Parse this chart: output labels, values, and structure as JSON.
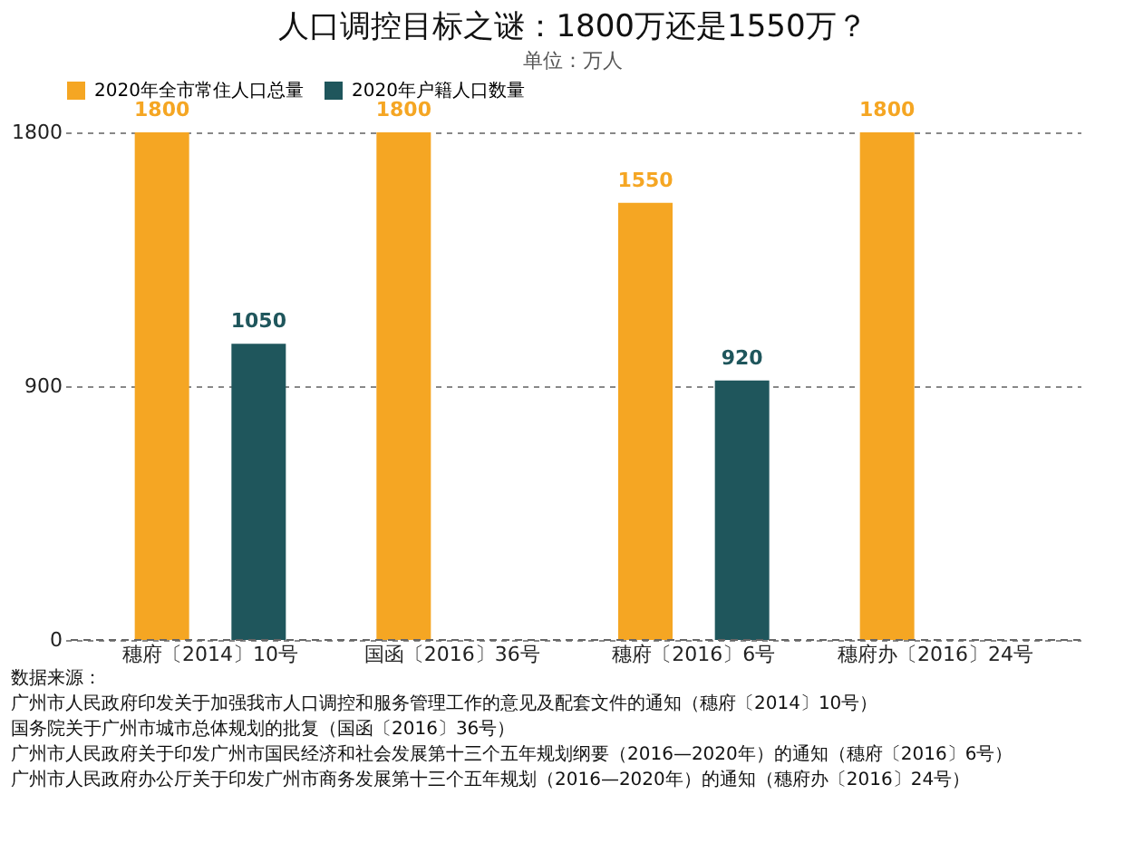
{
  "chart_data": {
    "type": "bar",
    "title": "人口调控目标之谜：1800万还是1550万？",
    "subtitle": "单位：万人",
    "categories": [
      "穗府〔2014〕10号",
      "国函〔2016〕36号",
      "穗府〔2016〕6号",
      "穗府办〔2016〕24号"
    ],
    "series": [
      {
        "name": "2020年全市常住人口总量",
        "color": "#f5a623",
        "values": [
          1800,
          1800,
          1550,
          1800
        ]
      },
      {
        "name": "2020年户籍人口数量",
        "color": "#1f565c",
        "values": [
          1050,
          null,
          920,
          null
        ]
      }
    ],
    "ylim": [
      0,
      1800
    ],
    "yticks": [
      0,
      900,
      1800
    ],
    "grid": "y",
    "legend": "top",
    "data_labels": true,
    "annotations": [
      "数据来源：",
      "广州市人民政府印发关于加强我市人口调控和服务管理工作的意见及配套文件的通知（穗府〔2014〕10号）",
      "国务院关于广州市城市总体规划的批复（国函〔2016〕36号）",
      "广州市人民政府关于印发广州市国民经济和社会发展第十三个五年规划纲要（2016—2020年）的通知（穗府〔2016〕6号）",
      "广州市人民政府办公厅关于印发广州市商务发展第十三个五年规划（2016—2020年）的通知（穗府办〔2016〕24号）"
    ]
  }
}
